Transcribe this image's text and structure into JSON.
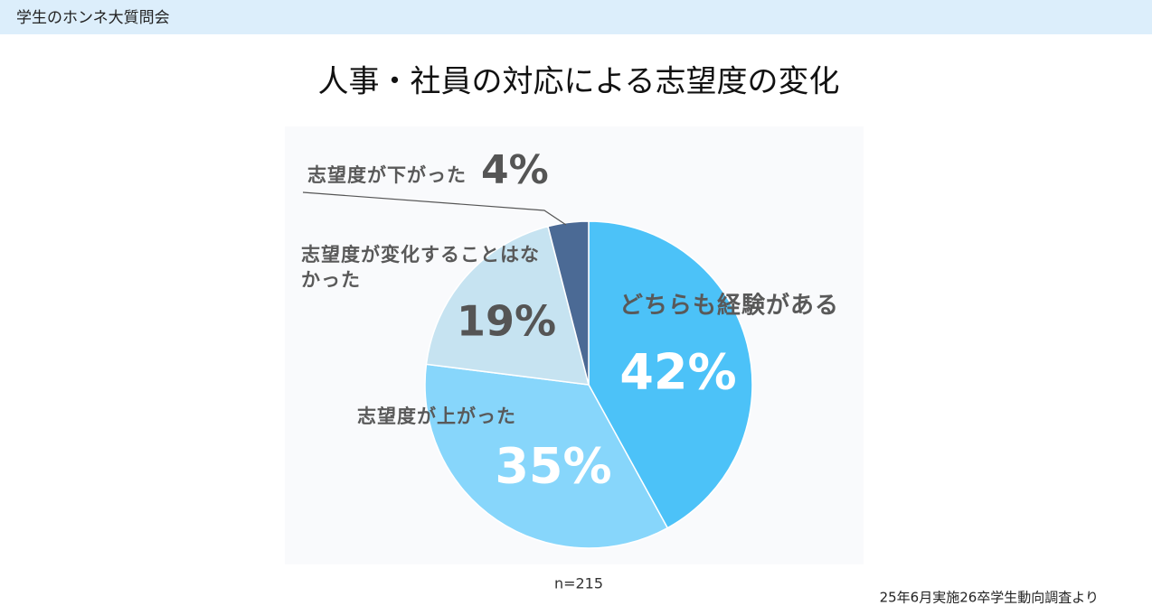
{
  "header": {
    "title": "学生のホンネ大質問会"
  },
  "chart_data": {
    "type": "pie",
    "title": "人事・社員の対応による志望度の変化",
    "categories": [
      "どちらも経験がある",
      "志望度が上がった",
      "志望度が変化することはなかった",
      "志望度が下がった"
    ],
    "values": [
      42,
      35,
      19,
      4
    ],
    "value_labels": [
      "42%",
      "35%",
      "19%",
      "4%"
    ],
    "colors": [
      "#4cc2f8",
      "#87d6fb",
      "#c6e3f1",
      "#4b6a95"
    ],
    "note": "n=215"
  },
  "footer": {
    "source": "25年6月実施26卒学生動向調査より"
  }
}
